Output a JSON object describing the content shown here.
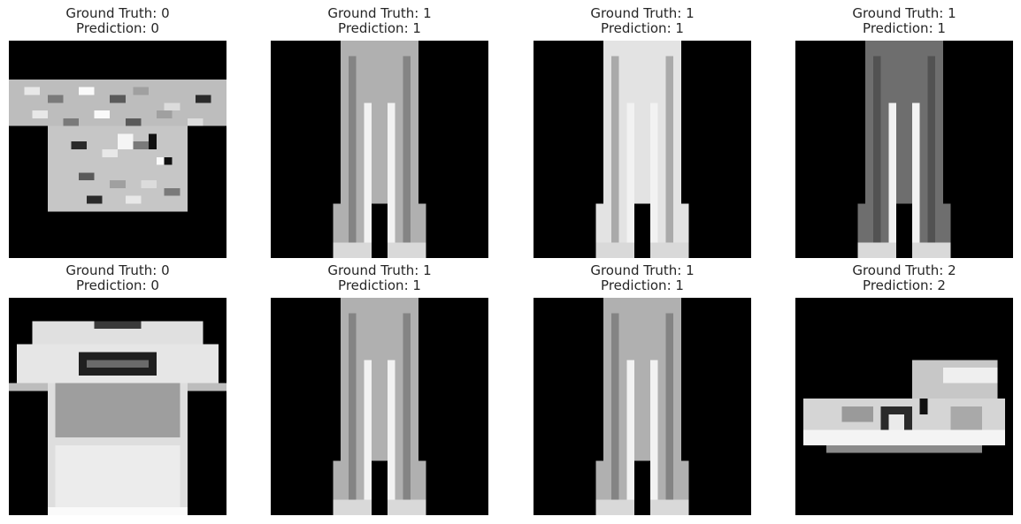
{
  "figure": {
    "panels": [
      {
        "ground_truth_label": "Ground Truth: 0",
        "prediction_label": "Prediction: 0",
        "item": "tshirt-patterned"
      },
      {
        "ground_truth_label": "Ground Truth: 1",
        "prediction_label": "Prediction: 1",
        "item": "trouser"
      },
      {
        "ground_truth_label": "Ground Truth: 1",
        "prediction_label": "Prediction: 1",
        "item": "trouser-bright"
      },
      {
        "ground_truth_label": "Ground Truth: 1",
        "prediction_label": "Prediction: 1",
        "item": "trouser-dark"
      },
      {
        "ground_truth_label": "Ground Truth: 0",
        "prediction_label": "Prediction: 0",
        "item": "tshirt-plain"
      },
      {
        "ground_truth_label": "Ground Truth: 1",
        "prediction_label": "Prediction: 1",
        "item": "trouser"
      },
      {
        "ground_truth_label": "Ground Truth: 1",
        "prediction_label": "Prediction: 1",
        "item": "trouser"
      },
      {
        "ground_truth_label": "Ground Truth: 2",
        "prediction_label": "Prediction: 2",
        "item": "sneaker"
      }
    ]
  }
}
